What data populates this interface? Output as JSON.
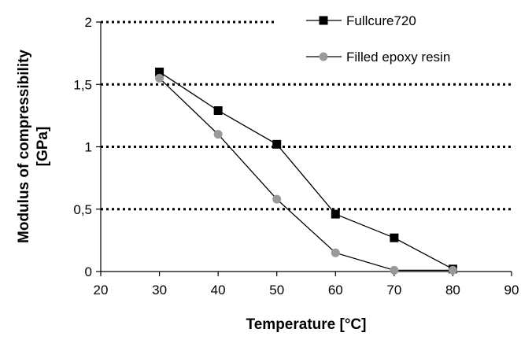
{
  "chart_data": {
    "type": "line",
    "title": "",
    "xlabel": "Temperature [°C]",
    "ylabel_lines": [
      "Modulus of compressibility",
      "[GPa]"
    ],
    "xlim": [
      20,
      90
    ],
    "ylim": [
      0,
      2
    ],
    "x_ticks": [
      20,
      30,
      40,
      50,
      60,
      70,
      80,
      90
    ],
    "x_tick_labels": [
      "20",
      "30",
      "40",
      "50",
      "60",
      "70",
      "80",
      "90"
    ],
    "y_ticks": [
      0,
      0.5,
      1,
      1.5,
      2
    ],
    "y_tick_labels": [
      "0",
      "0,5",
      "1",
      "1,5",
      "2"
    ],
    "grid": "horizontal dotted",
    "legend_position": "top-right",
    "series": [
      {
        "name": "Fullcure720",
        "marker": "square",
        "color": "#000000",
        "x": [
          30,
          40,
          50,
          60,
          70,
          80
        ],
        "values": [
          1.6,
          1.29,
          1.02,
          0.46,
          0.27,
          0.02
        ]
      },
      {
        "name": "Filled epoxy resin",
        "marker": "circle",
        "color": "#999999",
        "x": [
          30,
          40,
          50,
          60,
          70,
          80
        ],
        "values": [
          1.55,
          1.1,
          0.58,
          0.15,
          0.01,
          0.01
        ]
      }
    ]
  }
}
